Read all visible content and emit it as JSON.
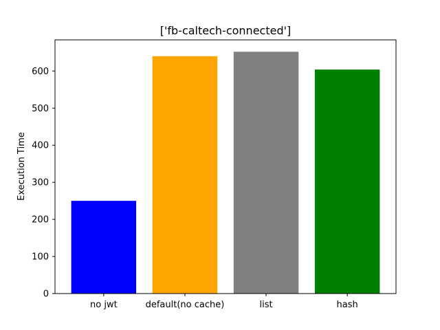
{
  "chart_data": {
    "type": "bar",
    "title": "['fb-caltech-connected']",
    "xlabel": "",
    "ylabel": "Execution Time",
    "categories": [
      "no jwt",
      "default(no cache)",
      "list",
      "hash"
    ],
    "values": [
      250,
      640,
      652,
      604
    ],
    "colors": [
      "#0000ff",
      "#ffa500",
      "#808080",
      "#008000"
    ],
    "ylim": [
      0,
      684
    ],
    "yticks": [
      0,
      100,
      200,
      300,
      400,
      500,
      600
    ],
    "grid": false,
    "legend": "none"
  }
}
